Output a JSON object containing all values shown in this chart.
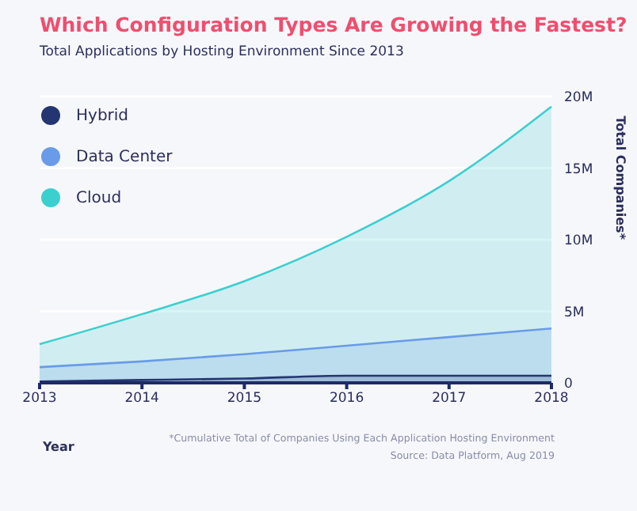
{
  "chart_data": {
    "type": "area",
    "title": "Which Configuration Types Are Growing the Fastest?",
    "subtitle": "Total Applications by Hosting Environment Since 2013",
    "xlabel": "Year",
    "ylabel": "Total Companies*",
    "categories": [
      "2013",
      "2014",
      "2015",
      "2016",
      "2017",
      "2018"
    ],
    "series": [
      {
        "name": "Cloud",
        "color": "#3ccfcf",
        "values": [
          2.7,
          4.8,
          7.1,
          10.2,
          14.1,
          19.3
        ]
      },
      {
        "name": "Data Center",
        "color": "#6a9be8",
        "values": [
          1.1,
          1.5,
          2.0,
          2.6,
          3.2,
          3.8
        ]
      },
      {
        "name": "Hybrid",
        "color": "#243672",
        "values": [
          0.1,
          0.2,
          0.3,
          0.5,
          0.5,
          0.5
        ]
      }
    ],
    "ylim": [
      0,
      20
    ],
    "yticks": [
      0,
      {
        "value": 5,
        "label": "5M"
      },
      {
        "value": 10,
        "label": "10M"
      },
      {
        "value": 15,
        "label": "15M"
      },
      {
        "value": 20,
        "label": "20M"
      }
    ],
    "grid": "y",
    "legend": "top left",
    "annotations": [
      "*Cumulative Total of Companies Using Each Application Hosting Environment",
      "Source: Data Platform, Aug 2019"
    ]
  }
}
